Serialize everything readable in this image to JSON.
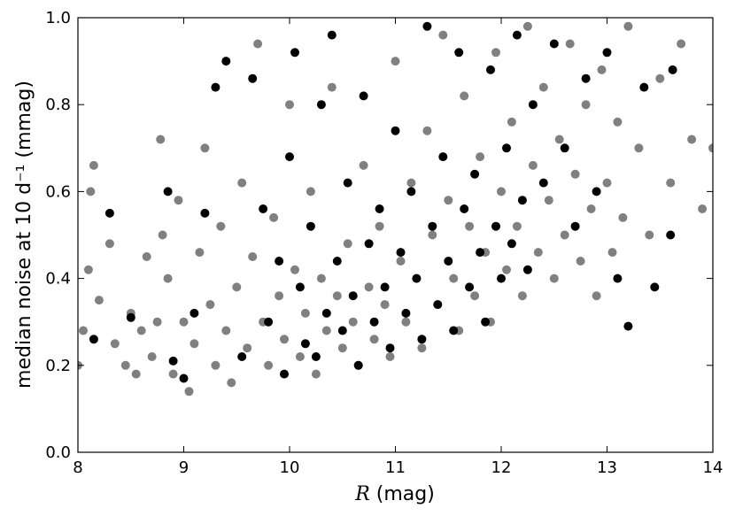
{
  "chart_data": {
    "type": "scatter",
    "xlabel": "R (mag)",
    "xlabel_var": "R",
    "xlabel_unit": " (mag)",
    "ylabel": "median noise at 10 d⁻¹ (mmag)",
    "xlim": [
      8,
      14
    ],
    "ylim": [
      0.0,
      1.0
    ],
    "xticks": [
      8,
      9,
      10,
      11,
      12,
      13,
      14
    ],
    "xtick_labels": [
      "8",
      "9",
      "10",
      "11",
      "12",
      "13",
      "14"
    ],
    "yticks": [
      0.0,
      0.2,
      0.4,
      0.6,
      0.8,
      1.0
    ],
    "ytick_labels": [
      "0.0",
      "0.2",
      "0.4",
      "0.6",
      "0.8",
      "1.0"
    ],
    "grid": false,
    "colors": {
      "gray_series": "#808080",
      "black_series": "#000000"
    },
    "series": [
      {
        "color": "#808080",
        "points": [
          [
            8.0,
            0.2
          ],
          [
            8.05,
            0.28
          ],
          [
            8.1,
            0.42
          ],
          [
            8.12,
            0.6
          ],
          [
            8.15,
            0.66
          ],
          [
            8.2,
            0.35
          ],
          [
            8.3,
            0.48
          ],
          [
            8.35,
            0.25
          ],
          [
            8.45,
            0.2
          ],
          [
            8.5,
            0.32
          ],
          [
            8.55,
            0.18
          ],
          [
            8.6,
            0.28
          ],
          [
            8.65,
            0.45
          ],
          [
            8.7,
            0.22
          ],
          [
            8.75,
            0.3
          ],
          [
            8.78,
            0.72
          ],
          [
            8.8,
            0.5
          ],
          [
            8.85,
            0.4
          ],
          [
            8.9,
            0.18
          ],
          [
            8.95,
            0.58
          ],
          [
            9.0,
            0.3
          ],
          [
            9.05,
            0.14
          ],
          [
            9.1,
            0.25
          ],
          [
            9.15,
            0.46
          ],
          [
            9.2,
            0.7
          ],
          [
            9.25,
            0.34
          ],
          [
            9.3,
            0.2
          ],
          [
            9.35,
            0.52
          ],
          [
            9.4,
            0.28
          ],
          [
            9.45,
            0.16
          ],
          [
            9.5,
            0.38
          ],
          [
            9.55,
            0.62
          ],
          [
            9.6,
            0.24
          ],
          [
            9.65,
            0.45
          ],
          [
            9.7,
            0.94
          ],
          [
            9.75,
            0.3
          ],
          [
            9.8,
            0.2
          ],
          [
            9.85,
            0.54
          ],
          [
            9.9,
            0.36
          ],
          [
            9.95,
            0.26
          ],
          [
            10.0,
            0.8
          ],
          [
            10.05,
            0.42
          ],
          [
            10.1,
            0.22
          ],
          [
            10.15,
            0.32
          ],
          [
            10.2,
            0.6
          ],
          [
            10.25,
            0.18
          ],
          [
            10.3,
            0.4
          ],
          [
            10.35,
            0.28
          ],
          [
            10.4,
            0.84
          ],
          [
            10.45,
            0.36
          ],
          [
            10.5,
            0.24
          ],
          [
            10.55,
            0.48
          ],
          [
            10.6,
            0.3
          ],
          [
            10.65,
            0.2
          ],
          [
            10.7,
            0.66
          ],
          [
            10.75,
            0.38
          ],
          [
            10.8,
            0.26
          ],
          [
            10.85,
            0.52
          ],
          [
            10.9,
            0.34
          ],
          [
            10.95,
            0.22
          ],
          [
            11.0,
            0.9
          ],
          [
            11.05,
            0.44
          ],
          [
            11.1,
            0.3
          ],
          [
            11.15,
            0.62
          ],
          [
            11.2,
            0.4
          ],
          [
            11.25,
            0.24
          ],
          [
            11.3,
            0.74
          ],
          [
            11.35,
            0.5
          ],
          [
            11.4,
            0.34
          ],
          [
            11.45,
            0.96
          ],
          [
            11.5,
            0.58
          ],
          [
            11.55,
            0.4
          ],
          [
            11.6,
            0.28
          ],
          [
            11.65,
            0.82
          ],
          [
            11.7,
            0.52
          ],
          [
            11.75,
            0.36
          ],
          [
            11.8,
            0.68
          ],
          [
            11.85,
            0.46
          ],
          [
            11.9,
            0.3
          ],
          [
            11.95,
            0.92
          ],
          [
            12.0,
            0.6
          ],
          [
            12.05,
            0.42
          ],
          [
            12.1,
            0.76
          ],
          [
            12.15,
            0.52
          ],
          [
            12.2,
            0.36
          ],
          [
            12.25,
            0.98
          ],
          [
            12.3,
            0.66
          ],
          [
            12.35,
            0.46
          ],
          [
            12.4,
            0.84
          ],
          [
            12.45,
            0.58
          ],
          [
            12.5,
            0.4
          ],
          [
            12.55,
            0.72
          ],
          [
            12.6,
            0.5
          ],
          [
            12.65,
            0.94
          ],
          [
            12.7,
            0.64
          ],
          [
            12.75,
            0.44
          ],
          [
            12.8,
            0.8
          ],
          [
            12.85,
            0.56
          ],
          [
            12.9,
            0.36
          ],
          [
            12.95,
            0.88
          ],
          [
            13.0,
            0.62
          ],
          [
            13.05,
            0.46
          ],
          [
            13.1,
            0.76
          ],
          [
            13.15,
            0.54
          ],
          [
            13.2,
            0.98
          ],
          [
            13.3,
            0.7
          ],
          [
            13.4,
            0.5
          ],
          [
            13.5,
            0.86
          ],
          [
            13.6,
            0.62
          ],
          [
            13.7,
            0.94
          ],
          [
            13.8,
            0.72
          ],
          [
            13.9,
            0.56
          ],
          [
            14.0,
            0.7
          ]
        ]
      },
      {
        "color": "#000000",
        "points": [
          [
            8.15,
            0.26
          ],
          [
            8.3,
            0.55
          ],
          [
            8.5,
            0.31
          ],
          [
            8.85,
            0.6
          ],
          [
            8.9,
            0.21
          ],
          [
            9.0,
            0.17
          ],
          [
            9.1,
            0.32
          ],
          [
            9.2,
            0.55
          ],
          [
            9.3,
            0.84
          ],
          [
            9.4,
            0.9
          ],
          [
            9.55,
            0.22
          ],
          [
            9.65,
            0.86
          ],
          [
            9.75,
            0.56
          ],
          [
            9.8,
            0.3
          ],
          [
            9.9,
            0.44
          ],
          [
            9.95,
            0.18
          ],
          [
            10.0,
            0.68
          ],
          [
            10.05,
            0.92
          ],
          [
            10.1,
            0.38
          ],
          [
            10.15,
            0.25
          ],
          [
            10.2,
            0.52
          ],
          [
            10.25,
            0.22
          ],
          [
            10.3,
            0.8
          ],
          [
            10.35,
            0.32
          ],
          [
            10.4,
            0.96
          ],
          [
            10.45,
            0.44
          ],
          [
            10.5,
            0.28
          ],
          [
            10.55,
            0.62
          ],
          [
            10.6,
            0.36
          ],
          [
            10.65,
            0.2
          ],
          [
            10.7,
            0.82
          ],
          [
            10.75,
            0.48
          ],
          [
            10.8,
            0.3
          ],
          [
            10.85,
            0.56
          ],
          [
            10.9,
            0.38
          ],
          [
            10.95,
            0.24
          ],
          [
            11.0,
            0.74
          ],
          [
            11.05,
            0.46
          ],
          [
            11.1,
            0.32
          ],
          [
            11.15,
            0.6
          ],
          [
            11.2,
            0.4
          ],
          [
            11.25,
            0.26
          ],
          [
            11.3,
            0.98
          ],
          [
            11.35,
            0.52
          ],
          [
            11.4,
            0.34
          ],
          [
            11.45,
            0.68
          ],
          [
            11.5,
            0.44
          ],
          [
            11.55,
            0.28
          ],
          [
            11.6,
            0.92
          ],
          [
            11.65,
            0.56
          ],
          [
            11.7,
            0.38
          ],
          [
            11.75,
            0.64
          ],
          [
            11.8,
            0.46
          ],
          [
            11.85,
            0.3
          ],
          [
            11.9,
            0.88
          ],
          [
            11.95,
            0.52
          ],
          [
            12.0,
            0.4
          ],
          [
            12.05,
            0.7
          ],
          [
            12.1,
            0.48
          ],
          [
            12.15,
            0.96
          ],
          [
            12.2,
            0.58
          ],
          [
            12.25,
            0.42
          ],
          [
            12.3,
            0.8
          ],
          [
            12.4,
            0.62
          ],
          [
            12.5,
            0.94
          ],
          [
            12.6,
            0.7
          ],
          [
            12.7,
            0.52
          ],
          [
            12.8,
            0.86
          ],
          [
            12.9,
            0.6
          ],
          [
            13.0,
            0.92
          ],
          [
            13.1,
            0.4
          ],
          [
            13.2,
            0.29
          ],
          [
            13.35,
            0.84
          ],
          [
            13.45,
            0.38
          ],
          [
            13.6,
            0.5
          ],
          [
            13.62,
            0.88
          ]
        ]
      }
    ]
  }
}
